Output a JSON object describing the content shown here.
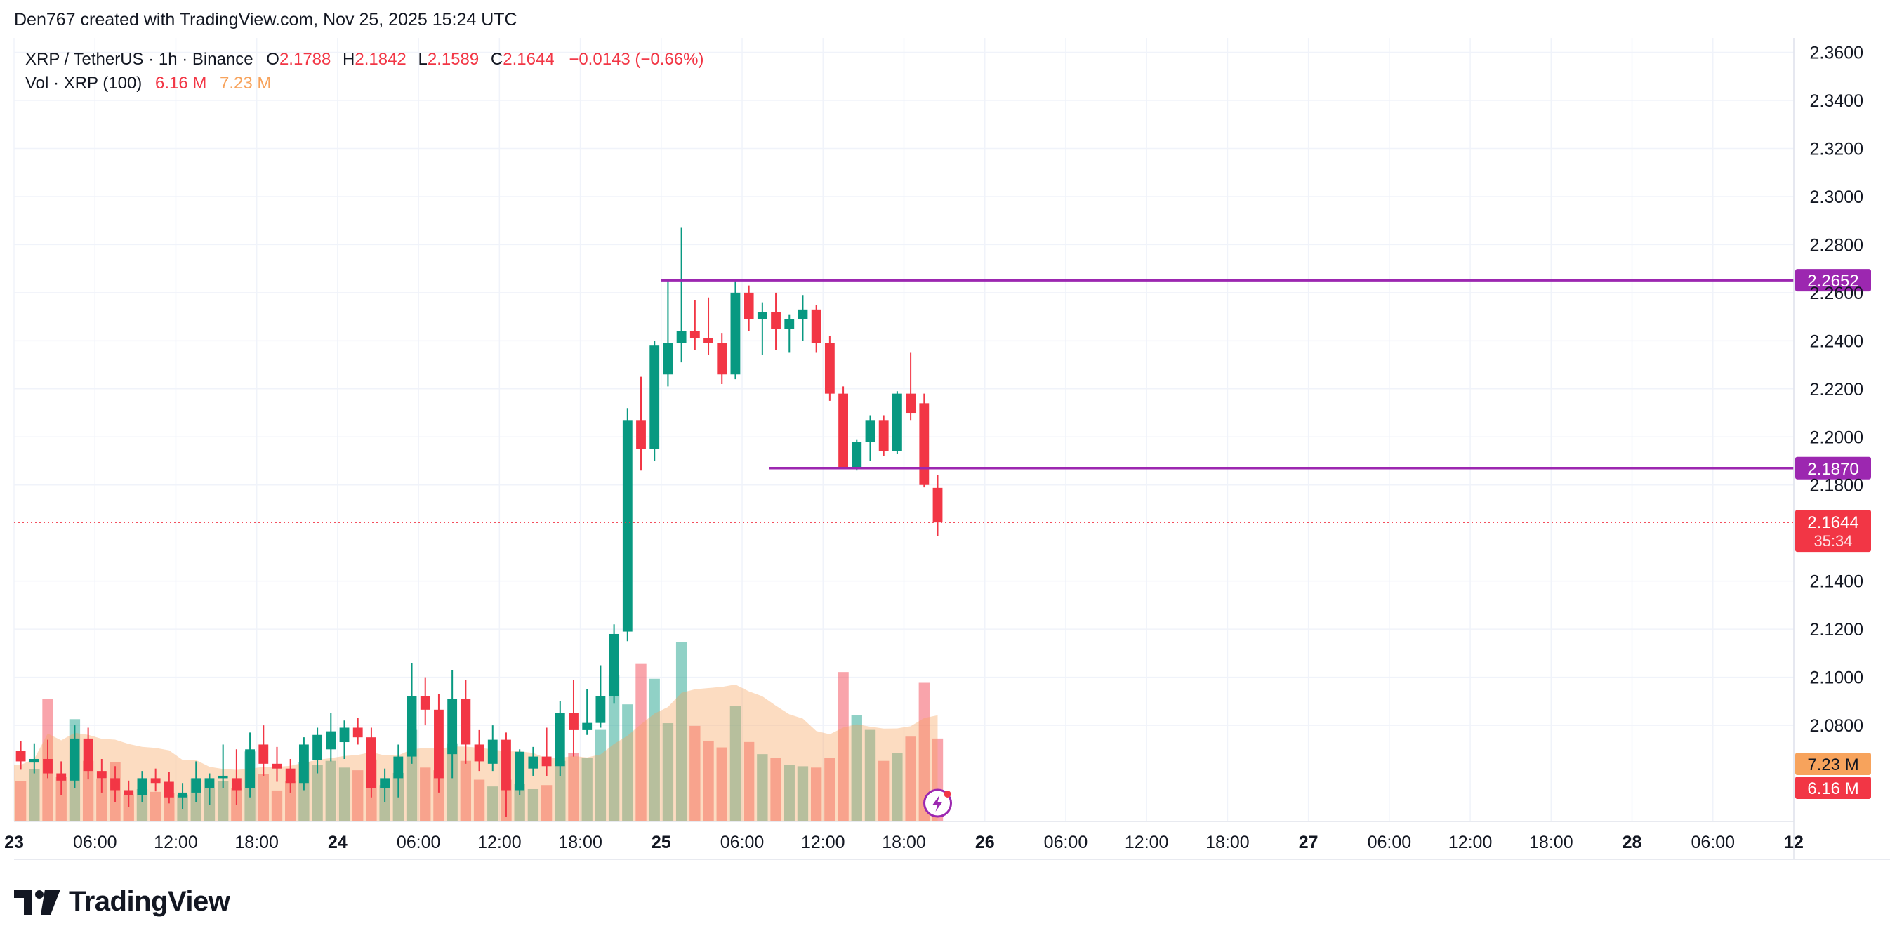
{
  "header": {
    "credit": "Den767 created with TradingView.com, Nov 25, 2025 15:24 UTC"
  },
  "legend": {
    "symbol": "XRP / TetherUS · 1h · Binance",
    "open_label": "O",
    "open": "2.1788",
    "high_label": "H",
    "high": "2.1842",
    "low_label": "L",
    "low": "2.1589",
    "close_label": "C",
    "close": "2.1644",
    "change": "−0.0143 (−0.66%)",
    "vol_label": "Vol · XRP (100)",
    "vol_value": "6.16 M",
    "vol_ma": "7.23 M"
  },
  "footer": {
    "brand": "TradingView",
    "logo_icon": "tradingview-logo-icon"
  },
  "colors": {
    "up": "#089981",
    "down": "#f23645",
    "level": "#9c27b0",
    "vol_ma": "#f7a35c",
    "grid": "#f0f3fa"
  },
  "chart_data": {
    "type": "candlestick",
    "y_ticks": [
      "2.3600",
      "2.3400",
      "2.3200",
      "2.3000",
      "2.2800",
      "2.2600",
      "2.2400",
      "2.2200",
      "2.2000",
      "2.1800",
      "2.1400",
      "2.1200",
      "2.1000",
      "2.0800"
    ],
    "ylim": [
      2.04,
      2.366
    ],
    "x_ticks": [
      "23",
      "06:00",
      "12:00",
      "18:00",
      "24",
      "06:00",
      "12:00",
      "18:00",
      "25",
      "06:00",
      "12:00",
      "18:00",
      "26",
      "06:00",
      "12:00",
      "18:00",
      "27",
      "06:00",
      "12:00",
      "18:00",
      "28",
      "06:00",
      "12"
    ],
    "x_tick_hours": [
      0,
      6,
      12,
      18,
      24,
      30,
      36,
      42,
      48,
      54,
      60,
      66,
      72,
      78,
      84,
      90,
      96,
      102,
      108,
      114,
      120,
      126,
      132
    ],
    "xlim_hours": [
      0,
      132
    ],
    "levels": [
      {
        "price": 2.2652,
        "label": "2.2652",
        "start_hour": 48
      },
      {
        "price": 2.187,
        "label": "2.1870",
        "start_hour": 56
      }
    ],
    "last_price": {
      "price": 2.1644,
      "label": "2.1644",
      "countdown": "35:34"
    },
    "volume_labels": {
      "ma": "7.23 M",
      "vol": "6.16 M"
    },
    "vol_max": 10.9,
    "candles": [
      {
        "t": 0,
        "o": 2.0695,
        "h": 2.0735,
        "l": 2.0615,
        "c": 2.065,
        "v": 3.0
      },
      {
        "t": 1,
        "o": 2.0645,
        "h": 2.0725,
        "l": 2.06,
        "c": 2.066,
        "v": 3.9
      },
      {
        "t": 2,
        "o": 2.066,
        "h": 2.074,
        "l": 2.058,
        "c": 2.06,
        "v": 9.1
      },
      {
        "t": 3,
        "o": 2.06,
        "h": 2.065,
        "l": 2.051,
        "c": 2.057,
        "v": 3.3
      },
      {
        "t": 4,
        "o": 2.057,
        "h": 2.08,
        "l": 2.054,
        "c": 2.0745,
        "v": 7.6
      },
      {
        "t": 5,
        "o": 2.0745,
        "h": 2.079,
        "l": 2.0575,
        "c": 2.061,
        "v": 4.5
      },
      {
        "t": 6,
        "o": 2.061,
        "h": 2.066,
        "l": 2.052,
        "c": 2.058,
        "v": 3.2
      },
      {
        "t": 7,
        "o": 2.058,
        "h": 2.063,
        "l": 2.048,
        "c": 2.053,
        "v": 4.4
      },
      {
        "t": 8,
        "o": 2.053,
        "h": 2.057,
        "l": 2.046,
        "c": 2.051,
        "v": 2.0
      },
      {
        "t": 9,
        "o": 2.051,
        "h": 2.061,
        "l": 2.048,
        "c": 2.058,
        "v": 2.4
      },
      {
        "t": 10,
        "o": 2.058,
        "h": 2.062,
        "l": 2.0525,
        "c": 2.056,
        "v": 2.2
      },
      {
        "t": 11,
        "o": 2.0565,
        "h": 2.0605,
        "l": 2.0475,
        "c": 2.05,
        "v": 2.1
      },
      {
        "t": 12,
        "o": 2.05,
        "h": 2.056,
        "l": 2.045,
        "c": 2.052,
        "v": 2.0
      },
      {
        "t": 13,
        "o": 2.052,
        "h": 2.065,
        "l": 2.048,
        "c": 2.058,
        "v": 3.2
      },
      {
        "t": 14,
        "o": 2.054,
        "h": 2.06,
        "l": 2.047,
        "c": 2.058,
        "v": 2.5
      },
      {
        "t": 15,
        "o": 2.058,
        "h": 2.072,
        "l": 2.054,
        "c": 2.059,
        "v": 3.0
      },
      {
        "t": 16,
        "o": 2.058,
        "h": 2.07,
        "l": 2.047,
        "c": 2.053,
        "v": 2.5
      },
      {
        "t": 17,
        "o": 2.054,
        "h": 2.077,
        "l": 2.05,
        "c": 2.07,
        "v": 5.2
      },
      {
        "t": 18,
        "o": 2.072,
        "h": 2.08,
        "l": 2.059,
        "c": 2.064,
        "v": 3.5
      },
      {
        "t": 19,
        "o": 2.064,
        "h": 2.071,
        "l": 2.0565,
        "c": 2.062,
        "v": 2.3
      },
      {
        "t": 20,
        "o": 2.062,
        "h": 2.066,
        "l": 2.052,
        "c": 2.056,
        "v": 3.0
      },
      {
        "t": 21,
        "o": 2.056,
        "h": 2.075,
        "l": 2.053,
        "c": 2.072,
        "v": 4.4
      },
      {
        "t": 22,
        "o": 2.0655,
        "h": 2.079,
        "l": 2.06,
        "c": 2.076,
        "v": 4.2
      },
      {
        "t": 23,
        "o": 2.07,
        "h": 2.085,
        "l": 2.065,
        "c": 2.0775,
        "v": 4.5
      },
      {
        "t": 24,
        "o": 2.073,
        "h": 2.082,
        "l": 2.066,
        "c": 2.079,
        "v": 4.0
      },
      {
        "t": 25,
        "o": 2.079,
        "h": 2.083,
        "l": 2.072,
        "c": 2.075,
        "v": 3.8
      },
      {
        "t": 26,
        "o": 2.075,
        "h": 2.079,
        "l": 2.05,
        "c": 2.054,
        "v": 4.6
      },
      {
        "t": 27,
        "o": 2.054,
        "h": 2.062,
        "l": 2.048,
        "c": 2.058,
        "v": 2.7
      },
      {
        "t": 28,
        "o": 2.058,
        "h": 2.072,
        "l": 2.05,
        "c": 2.067,
        "v": 3.6
      },
      {
        "t": 29,
        "o": 2.067,
        "h": 2.106,
        "l": 2.064,
        "c": 2.092,
        "v": 6.8
      },
      {
        "t": 30,
        "o": 2.092,
        "h": 2.1,
        "l": 2.08,
        "c": 2.0865,
        "v": 4.0
      },
      {
        "t": 31,
        "o": 2.0865,
        "h": 2.093,
        "l": 2.052,
        "c": 2.058,
        "v": 3.8
      },
      {
        "t": 32,
        "o": 2.068,
        "h": 2.103,
        "l": 2.058,
        "c": 2.091,
        "v": 5.8
      },
      {
        "t": 33,
        "o": 2.091,
        "h": 2.099,
        "l": 2.064,
        "c": 2.072,
        "v": 4.5
      },
      {
        "t": 34,
        "o": 2.072,
        "h": 2.078,
        "l": 2.061,
        "c": 2.065,
        "v": 3.1
      },
      {
        "t": 35,
        "o": 2.064,
        "h": 2.08,
        "l": 2.061,
        "c": 2.074,
        "v": 2.6
      },
      {
        "t": 36,
        "o": 2.074,
        "h": 2.077,
        "l": 2.042,
        "c": 2.053,
        "v": 3.1
      },
      {
        "t": 37,
        "o": 2.053,
        "h": 2.07,
        "l": 2.051,
        "c": 2.069,
        "v": 2.8
      },
      {
        "t": 38,
        "o": 2.062,
        "h": 2.071,
        "l": 2.059,
        "c": 2.067,
        "v": 2.4
      },
      {
        "t": 39,
        "o": 2.067,
        "h": 2.079,
        "l": 2.059,
        "c": 2.063,
        "v": 2.7
      },
      {
        "t": 40,
        "o": 2.063,
        "h": 2.09,
        "l": 2.059,
        "c": 2.085,
        "v": 4.5
      },
      {
        "t": 41,
        "o": 2.085,
        "h": 2.099,
        "l": 2.067,
        "c": 2.078,
        "v": 5.1
      },
      {
        "t": 42,
        "o": 2.078,
        "h": 2.095,
        "l": 2.076,
        "c": 2.081,
        "v": 4.7
      },
      {
        "t": 43,
        "o": 2.081,
        "h": 2.105,
        "l": 2.079,
        "c": 2.092,
        "v": 6.8
      },
      {
        "t": 44,
        "o": 2.092,
        "h": 2.122,
        "l": 2.089,
        "c": 2.118,
        "v": 10.9
      },
      {
        "t": 45,
        "o": 2.119,
        "h": 2.212,
        "l": 2.115,
        "c": 2.207,
        "v": 8.7
      },
      {
        "t": 46,
        "o": 2.207,
        "h": 2.225,
        "l": 2.186,
        "c": 2.195,
        "v": 11.7
      },
      {
        "t": 47,
        "o": 2.195,
        "h": 2.24,
        "l": 2.19,
        "c": 2.238,
        "v": 10.6
      }
    ],
    "candles2": [
      {
        "t": 48,
        "o": 2.226,
        "h": 2.265,
        "l": 2.221,
        "c": 2.239,
        "v": 7.3
      },
      {
        "t": 49,
        "o": 2.239,
        "h": 2.287,
        "l": 2.231,
        "c": 2.244,
        "v": 13.3
      },
      {
        "t": 50,
        "o": 2.244,
        "h": 2.257,
        "l": 2.236,
        "c": 2.241,
        "v": 7.1
      },
      {
        "t": 51,
        "o": 2.241,
        "h": 2.258,
        "l": 2.234,
        "c": 2.239,
        "v": 6.0
      },
      {
        "t": 52,
        "o": 2.239,
        "h": 2.243,
        "l": 2.222,
        "c": 2.226,
        "v": 5.5
      },
      {
        "t": 53,
        "o": 2.226,
        "h": 2.2652,
        "l": 2.224,
        "c": 2.26,
        "v": 8.6
      },
      {
        "t": 54,
        "o": 2.26,
        "h": 2.263,
        "l": 2.244,
        "c": 2.249,
        "v": 5.9
      },
      {
        "t": 55,
        "o": 2.249,
        "h": 2.256,
        "l": 2.234,
        "c": 2.252,
        "v": 5.0
      },
      {
        "t": 56,
        "o": 2.252,
        "h": 2.26,
        "l": 2.236,
        "c": 2.245,
        "v": 4.7
      },
      {
        "t": 57,
        "o": 2.245,
        "h": 2.251,
        "l": 2.235,
        "c": 2.249,
        "v": 4.2
      },
      {
        "t": 58,
        "o": 2.249,
        "h": 2.259,
        "l": 2.24,
        "c": 2.253,
        "v": 4.1
      },
      {
        "t": 59,
        "o": 2.253,
        "h": 2.255,
        "l": 2.235,
        "c": 2.239,
        "v": 4.0
      },
      {
        "t": 60,
        "o": 2.239,
        "h": 2.242,
        "l": 2.215,
        "c": 2.218,
        "v": 4.7
      },
      {
        "t": 61,
        "o": 2.218,
        "h": 2.221,
        "l": 2.187,
        "c": 2.187,
        "v": 11.1
      },
      {
        "t": 62,
        "o": 2.187,
        "h": 2.199,
        "l": 2.186,
        "c": 2.198,
        "v": 7.9
      },
      {
        "t": 63,
        "o": 2.198,
        "h": 2.209,
        "l": 2.19,
        "c": 2.207,
        "v": 6.8
      },
      {
        "t": 64,
        "o": 2.207,
        "h": 2.209,
        "l": 2.192,
        "c": 2.194,
        "v": 4.5
      },
      {
        "t": 65,
        "o": 2.194,
        "h": 2.219,
        "l": 2.193,
        "c": 2.218,
        "v": 5.1
      },
      {
        "t": 66,
        "o": 2.218,
        "h": 2.235,
        "l": 2.207,
        "c": 2.21,
        "v": 6.3
      },
      {
        "t": 67,
        "o": 2.214,
        "h": 2.218,
        "l": 2.179,
        "c": 2.18,
        "v": 10.3
      },
      {
        "t": 68,
        "o": 2.1788,
        "h": 2.1842,
        "l": 2.1589,
        "c": 2.1644,
        "v": 6.16
      }
    ]
  }
}
